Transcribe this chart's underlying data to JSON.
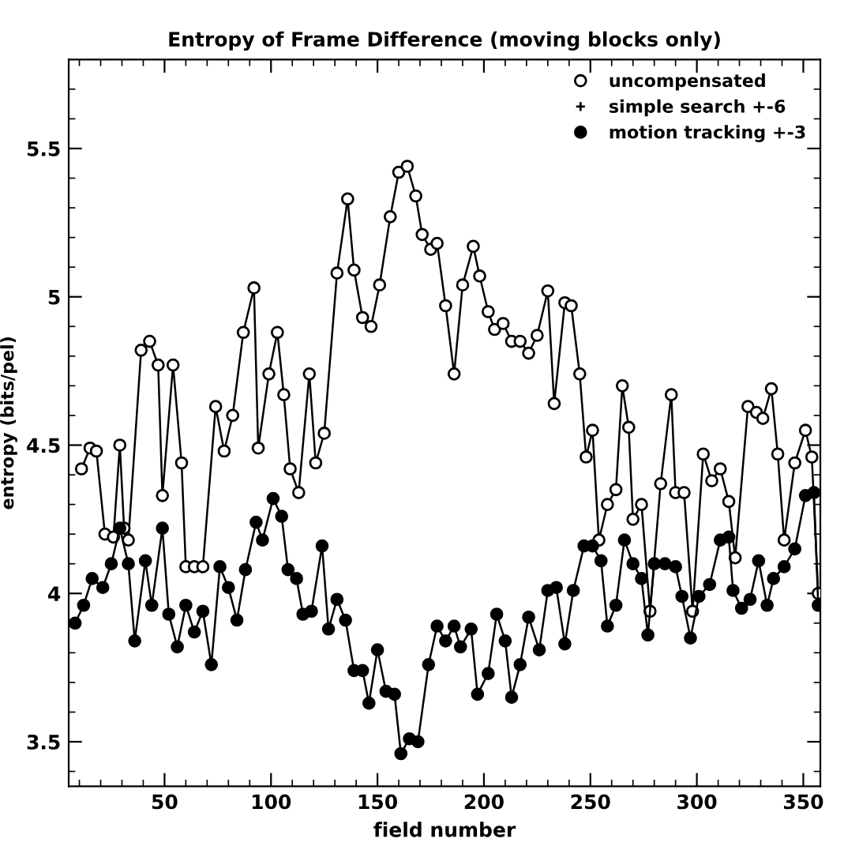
{
  "chart_data": {
    "type": "line",
    "title": "Entropy of Frame Difference (moving blocks only)",
    "xlabel": "field number",
    "ylabel": "entropy (bits/pel)",
    "xlim": [
      5,
      358
    ],
    "ylim": [
      3.35,
      5.8
    ],
    "xticks": [
      50,
      100,
      150,
      200,
      250,
      300,
      350,
      {
        "value": 10,
        "label": null
      },
      {
        "value": 20,
        "label": null
      },
      {
        "value": 30,
        "label": null
      },
      {
        "value": 40,
        "label": null
      },
      {
        "value": 60,
        "label": null
      },
      {
        "value": 70,
        "label": null
      },
      {
        "value": 80,
        "label": null
      },
      {
        "value": 90,
        "label": null
      },
      {
        "value": 110,
        "label": null
      },
      {
        "value": 120,
        "label": null
      },
      {
        "value": 130,
        "label": null
      },
      {
        "value": 140,
        "label": null
      },
      {
        "value": 160,
        "label": null
      },
      {
        "value": 170,
        "label": null
      },
      {
        "value": 180,
        "label": null
      },
      {
        "value": 190,
        "label": null
      },
      {
        "value": 210,
        "label": null
      },
      {
        "value": 220,
        "label": null
      },
      {
        "value": 230,
        "label": null
      },
      {
        "value": 240,
        "label": null
      },
      {
        "value": 260,
        "label": null
      },
      {
        "value": 270,
        "label": null
      },
      {
        "value": 280,
        "label": null
      },
      {
        "value": 290,
        "label": null
      },
      {
        "value": 310,
        "label": null
      },
      {
        "value": 320,
        "label": null
      },
      {
        "value": 330,
        "label": null
      },
      {
        "value": 340,
        "label": null
      }
    ],
    "yticks": [
      3.5,
      4,
      4.5,
      5,
      5.5,
      {
        "value": 3.4,
        "label": null
      },
      {
        "value": 3.6,
        "label": null
      },
      {
        "value": 3.7,
        "label": null
      },
      {
        "value": 3.8,
        "label": null
      },
      {
        "value": 3.9,
        "label": null
      },
      {
        "value": 4.1,
        "label": null
      },
      {
        "value": 4.2,
        "label": null
      },
      {
        "value": 4.3,
        "label": null
      },
      {
        "value": 4.4,
        "label": null
      },
      {
        "value": 4.6,
        "label": null
      },
      {
        "value": 4.7,
        "label": null
      },
      {
        "value": 4.8,
        "label": null
      },
      {
        "value": 4.9,
        "label": null
      },
      {
        "value": 5.1,
        "label": null
      },
      {
        "value": 5.2,
        "label": null
      },
      {
        "value": 5.3,
        "label": null
      },
      {
        "value": 5.4,
        "label": null
      },
      {
        "value": 5.6,
        "label": null
      },
      {
        "value": 5.7,
        "label": null
      }
    ],
    "grid": false,
    "legend": "top right",
    "line_style": "solid",
    "series": [
      {
        "name": "uncompensated",
        "color": "#ffffff",
        "marker": "circle",
        "x": [
          11,
          15,
          18,
          22,
          26,
          29,
          31,
          33,
          39,
          43,
          47,
          49,
          54,
          58,
          60,
          64,
          68,
          74,
          78,
          82,
          87,
          92,
          94,
          99,
          103,
          106,
          109,
          113,
          118,
          121,
          125,
          131,
          136,
          139,
          143,
          147,
          151,
          156,
          160,
          164,
          168,
          171,
          175,
          178,
          182,
          186,
          190,
          195,
          198,
          202,
          205,
          209,
          213,
          217,
          221,
          225,
          230,
          233,
          238,
          241,
          245,
          248,
          251,
          254,
          258,
          262,
          265,
          268,
          270,
          274,
          278,
          283,
          288,
          290,
          294,
          298,
          303,
          307,
          311,
          315,
          318,
          324,
          328,
          331,
          335,
          338,
          341,
          346,
          351,
          354,
          357
        ],
        "values": [
          4.42,
          4.49,
          4.48,
          4.2,
          4.19,
          4.5,
          4.22,
          4.18,
          4.82,
          4.85,
          4.77,
          4.33,
          4.77,
          4.44,
          4.09,
          4.09,
          4.09,
          4.63,
          4.48,
          4.6,
          4.88,
          5.03,
          4.49,
          4.74,
          4.88,
          4.67,
          4.42,
          4.34,
          4.74,
          4.44,
          4.54,
          5.08,
          5.33,
          5.09,
          4.93,
          4.9,
          5.04,
          5.27,
          5.42,
          5.44,
          5.34,
          5.21,
          5.16,
          5.18,
          4.97,
          4.74,
          5.04,
          5.17,
          5.07,
          4.95,
          4.89,
          4.91,
          4.85,
          4.85,
          4.81,
          4.87,
          5.02,
          4.64,
          4.98,
          4.97,
          4.74,
          4.46,
          4.55,
          4.18,
          4.3,
          4.35,
          4.7,
          4.56,
          4.25,
          4.3,
          3.94,
          4.37,
          4.67,
          4.34,
          4.34,
          3.94,
          4.47,
          4.38,
          4.42,
          4.31,
          4.12,
          4.63,
          4.61,
          4.59,
          4.69,
          4.47,
          4.18,
          4.44,
          4.55,
          4.46,
          4.0
        ]
      },
      {
        "name": "simple search +-6",
        "color": "#000000",
        "marker": "cross"
      },
      {
        "name": "motion tracking +-3",
        "color": "#000000",
        "marker": "circle",
        "x": [
          8,
          12,
          16,
          21,
          25,
          29,
          33,
          36,
          41,
          44,
          49,
          52,
          56,
          60,
          64,
          68,
          72,
          76,
          80,
          84,
          88,
          93,
          96,
          101,
          105,
          108,
          112,
          115,
          119,
          124,
          127,
          131,
          135,
          139,
          143,
          146,
          150,
          154,
          158,
          161,
          165,
          169,
          174,
          178,
          182,
          186,
          189,
          194,
          197,
          202,
          206,
          210,
          213,
          217,
          221,
          226,
          230,
          234,
          238,
          242,
          247,
          251,
          255,
          258,
          262,
          266,
          270,
          274,
          277,
          280,
          285,
          290,
          293,
          297,
          301,
          306,
          311,
          315,
          317,
          321,
          325,
          329,
          333,
          336,
          341,
          346,
          351,
          355,
          357
        ],
        "values": [
          3.9,
          3.96,
          4.05,
          4.02,
          4.1,
          4.22,
          4.1,
          3.84,
          4.11,
          3.96,
          4.22,
          3.93,
          3.82,
          3.96,
          3.87,
          3.94,
          3.76,
          4.09,
          4.02,
          3.91,
          4.08,
          4.24,
          4.18,
          4.32,
          4.26,
          4.08,
          4.05,
          3.93,
          3.94,
          4.16,
          3.88,
          3.98,
          3.91,
          3.74,
          3.74,
          3.63,
          3.81,
          3.67,
          3.66,
          3.46,
          3.51,
          3.5,
          3.76,
          3.89,
          3.84,
          3.89,
          3.82,
          3.88,
          3.66,
          3.73,
          3.93,
          3.84,
          3.65,
          3.76,
          3.92,
          3.81,
          4.01,
          4.02,
          3.83,
          4.01,
          4.16,
          4.16,
          4.11,
          3.89,
          3.96,
          4.18,
          4.1,
          4.05,
          3.86,
          4.1,
          4.1,
          4.09,
          3.99,
          3.85,
          3.99,
          4.03,
          4.18,
          4.19,
          4.01,
          3.95,
          3.98,
          4.11,
          3.96,
          4.05,
          4.09,
          4.15,
          4.33,
          4.34,
          3.96
        ]
      }
    ]
  }
}
